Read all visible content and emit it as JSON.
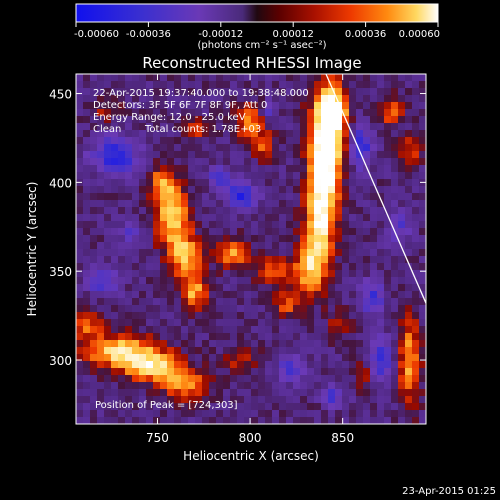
{
  "chart_data": {
    "type": "heatmap",
    "title": "Reconstructed RHESSI Image",
    "xlabel": "Heliocentric X (arcsec)",
    "ylabel": "Heliocentric Y (arcsec)",
    "xlim": [
      706,
      895
    ],
    "ylim": [
      264,
      461
    ],
    "xticks": [
      750,
      800,
      850
    ],
    "yticks": [
      300,
      350,
      400,
      450
    ],
    "colorbar": {
      "ticks": [
        "-0.00060",
        "-0.00036",
        "-0.00012",
        "0.00012",
        "0.00036",
        "0.00060"
      ],
      "range": [
        -0.0006,
        0.0006
      ],
      "unit_label": "(photons cm⁻² s⁻¹ asec⁻²)"
    },
    "colors": {
      "min": "#0000ff",
      "low": "#7733bb",
      "mid": "#550000",
      "high": "#ff4400",
      "max": "#ffffff"
    },
    "annotations": {
      "time_range": "22-Apr-2015 19:37:40.000 to 19:38:48.000",
      "detectors": "Detectors: 3F 5F 6F 7F 8F 9F, Att 0",
      "energy": "Energy Range: 12.0 - 25.0 keV",
      "clean": "Clean",
      "total_counts": "Total counts: 1.78E+03",
      "peak": "Position of Peak = [724,303]"
    },
    "peak_position": [
      724,
      303
    ],
    "limb_line": [
      [
        841,
        461
      ],
      [
        895,
        332
      ]
    ],
    "footer_timestamp": "23-Apr-2015 01:25"
  }
}
